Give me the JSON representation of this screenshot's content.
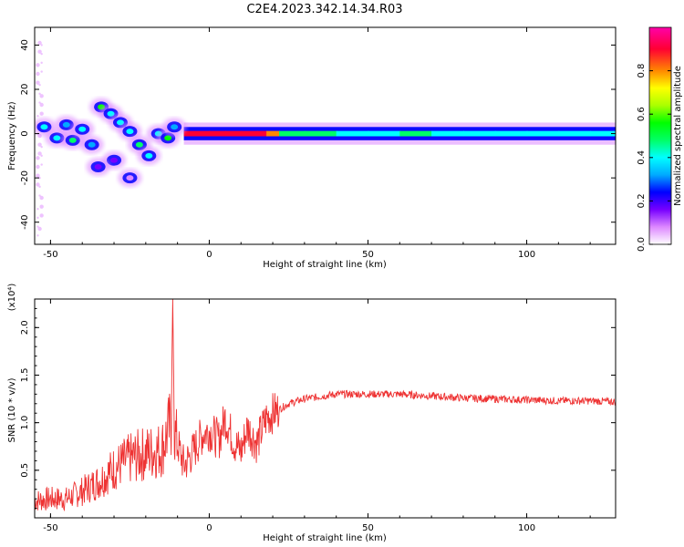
{
  "figure": {
    "title": "C2E4.2023.342.14.34.R03"
  },
  "chart_data": [
    {
      "type": "heatmap",
      "xlabel": "Height of straight line (km)",
      "ylabel": "Frequency (Hz)",
      "xlim": [
        -55,
        128
      ],
      "ylim": [
        -50,
        48
      ],
      "xticks": [
        -50,
        0,
        50,
        100
      ],
      "yticks": [
        -40,
        -20,
        0,
        20,
        40
      ],
      "grid": false,
      "colorbar": {
        "label": "Normalized spectral amplitude",
        "range": [
          0,
          1
        ],
        "ticks": [
          "0.0",
          "0.2",
          "0.4",
          "0.6",
          "0.8"
        ],
        "colormap": [
          "#ffffff",
          "#dd88ff",
          "#7700ff",
          "#0000ff",
          "#00aaff",
          "#00ffff",
          "#00ff66",
          "#00ff00",
          "#aaff00",
          "#ffff00",
          "#ff8800",
          "#ff0033",
          "#ff00aa"
        ]
      },
      "blobs": [
        {
          "x": -52,
          "y": 3,
          "v": 0.4
        },
        {
          "x": -48,
          "y": -2,
          "v": 0.45
        },
        {
          "x": -45,
          "y": 4,
          "v": 0.35
        },
        {
          "x": -43,
          "y": -3,
          "v": 0.5
        },
        {
          "x": -40,
          "y": 2,
          "v": 0.4
        },
        {
          "x": -37,
          "y": -5,
          "v": 0.3
        },
        {
          "x": -34,
          "y": 12,
          "v": 0.55
        },
        {
          "x": -31,
          "y": 9,
          "v": 0.4
        },
        {
          "x": -28,
          "y": 5,
          "v": 0.45
        },
        {
          "x": -25,
          "y": 1,
          "v": 0.4
        },
        {
          "x": -22,
          "y": -5,
          "v": 0.5
        },
        {
          "x": -19,
          "y": -10,
          "v": 0.45
        },
        {
          "x": -16,
          "y": 0,
          "v": 0.4
        },
        {
          "x": -13,
          "y": -2,
          "v": 0.55
        },
        {
          "x": -11,
          "y": 3,
          "v": 0.35
        },
        {
          "x": -30,
          "y": -12,
          "v": 0.2
        },
        {
          "x": -35,
          "y": -15,
          "v": 0.15
        },
        {
          "x": -25,
          "y": -20,
          "v": 0.12
        }
      ],
      "band": [
        {
          "x": -8,
          "v": 0.95
        },
        {
          "x": 0,
          "v": 0.95
        },
        {
          "x": 5,
          "v": 0.9
        },
        {
          "x": 10,
          "v": 0.95
        },
        {
          "x": 15,
          "v": 0.9
        },
        {
          "x": 18,
          "v": 0.85
        },
        {
          "x": 22,
          "v": 0.5
        },
        {
          "x": 30,
          "v": 0.5
        },
        {
          "x": 40,
          "v": 0.45
        },
        {
          "x": 50,
          "v": 0.45
        },
        {
          "x": 60,
          "v": 0.5
        },
        {
          "x": 70,
          "v": 0.45
        },
        {
          "x": 80,
          "v": 0.45
        },
        {
          "x": 90,
          "v": 0.4
        },
        {
          "x": 100,
          "v": 0.4
        },
        {
          "x": 110,
          "v": 0.4
        },
        {
          "x": 120,
          "v": 0.45
        },
        {
          "x": 128,
          "v": 0.5
        }
      ]
    },
    {
      "type": "line",
      "xlabel": "Height of straight line (km)",
      "ylabel": "SNR (10 * v/v)",
      "scale_label": "(x10⁴)",
      "xlim": [
        -55,
        128
      ],
      "ylim": [
        0,
        2.3
      ],
      "xticks": [
        -50,
        0,
        50,
        100
      ],
      "yticks": [
        "0.5",
        "1.0",
        "1.5",
        "2.0"
      ],
      "grid": false,
      "color": "#ee3333",
      "series": [
        {
          "x": [
            -55,
            -50,
            -45,
            -40,
            -35,
            -30,
            -25,
            -20,
            -15,
            -12,
            -11.5,
            -11,
            -10,
            -8,
            -5,
            -2,
            0,
            3,
            5,
            8,
            10,
            12,
            15,
            18,
            20,
            25,
            30,
            40,
            50,
            60,
            70,
            80,
            90,
            100,
            110,
            120,
            128
          ],
          "y": [
            0.18,
            0.2,
            0.2,
            0.28,
            0.38,
            0.52,
            0.62,
            0.68,
            0.72,
            1.0,
            2.3,
            0.9,
            0.78,
            0.55,
            0.7,
            0.88,
            0.92,
            0.82,
            1.05,
            0.78,
            0.7,
            0.95,
            0.78,
            1.05,
            1.1,
            1.2,
            1.25,
            1.3,
            1.3,
            1.3,
            1.28,
            1.26,
            1.25,
            1.24,
            1.23,
            1.23,
            1.22
          ]
        }
      ]
    }
  ]
}
